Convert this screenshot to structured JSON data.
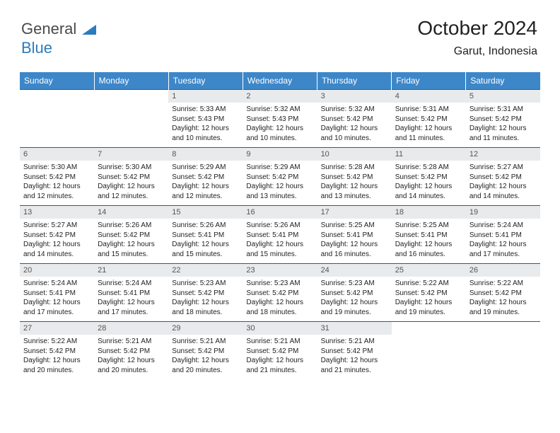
{
  "branding": {
    "word1": "General",
    "word2": "Blue",
    "word1_color": "#4a4a4a",
    "word2_color": "#2b7bbf",
    "triangle_color": "#2b7bbf"
  },
  "header": {
    "title": "October 2024",
    "location": "Garut, Indonesia",
    "title_fontsize": 28,
    "location_fontsize": 16
  },
  "calendar": {
    "header_bg": "#3d87c9",
    "header_fg": "#ffffff",
    "daynum_bg": "#e8eaec",
    "border_color": "#2a5a8a",
    "day_headers": [
      "Sunday",
      "Monday",
      "Tuesday",
      "Wednesday",
      "Thursday",
      "Friday",
      "Saturday"
    ],
    "weeks": [
      [
        null,
        null,
        {
          "n": "1",
          "sr": "5:33 AM",
          "ss": "5:43 PM",
          "dl": "12 hours and 10 minutes."
        },
        {
          "n": "2",
          "sr": "5:32 AM",
          "ss": "5:43 PM",
          "dl": "12 hours and 10 minutes."
        },
        {
          "n": "3",
          "sr": "5:32 AM",
          "ss": "5:42 PM",
          "dl": "12 hours and 10 minutes."
        },
        {
          "n": "4",
          "sr": "5:31 AM",
          "ss": "5:42 PM",
          "dl": "12 hours and 11 minutes."
        },
        {
          "n": "5",
          "sr": "5:31 AM",
          "ss": "5:42 PM",
          "dl": "12 hours and 11 minutes."
        }
      ],
      [
        {
          "n": "6",
          "sr": "5:30 AM",
          "ss": "5:42 PM",
          "dl": "12 hours and 12 minutes."
        },
        {
          "n": "7",
          "sr": "5:30 AM",
          "ss": "5:42 PM",
          "dl": "12 hours and 12 minutes."
        },
        {
          "n": "8",
          "sr": "5:29 AM",
          "ss": "5:42 PM",
          "dl": "12 hours and 12 minutes."
        },
        {
          "n": "9",
          "sr": "5:29 AM",
          "ss": "5:42 PM",
          "dl": "12 hours and 13 minutes."
        },
        {
          "n": "10",
          "sr": "5:28 AM",
          "ss": "5:42 PM",
          "dl": "12 hours and 13 minutes."
        },
        {
          "n": "11",
          "sr": "5:28 AM",
          "ss": "5:42 PM",
          "dl": "12 hours and 14 minutes."
        },
        {
          "n": "12",
          "sr": "5:27 AM",
          "ss": "5:42 PM",
          "dl": "12 hours and 14 minutes."
        }
      ],
      [
        {
          "n": "13",
          "sr": "5:27 AM",
          "ss": "5:42 PM",
          "dl": "12 hours and 14 minutes."
        },
        {
          "n": "14",
          "sr": "5:26 AM",
          "ss": "5:42 PM",
          "dl": "12 hours and 15 minutes."
        },
        {
          "n": "15",
          "sr": "5:26 AM",
          "ss": "5:41 PM",
          "dl": "12 hours and 15 minutes."
        },
        {
          "n": "16",
          "sr": "5:26 AM",
          "ss": "5:41 PM",
          "dl": "12 hours and 15 minutes."
        },
        {
          "n": "17",
          "sr": "5:25 AM",
          "ss": "5:41 PM",
          "dl": "12 hours and 16 minutes."
        },
        {
          "n": "18",
          "sr": "5:25 AM",
          "ss": "5:41 PM",
          "dl": "12 hours and 16 minutes."
        },
        {
          "n": "19",
          "sr": "5:24 AM",
          "ss": "5:41 PM",
          "dl": "12 hours and 17 minutes."
        }
      ],
      [
        {
          "n": "20",
          "sr": "5:24 AM",
          "ss": "5:41 PM",
          "dl": "12 hours and 17 minutes."
        },
        {
          "n": "21",
          "sr": "5:24 AM",
          "ss": "5:41 PM",
          "dl": "12 hours and 17 minutes."
        },
        {
          "n": "22",
          "sr": "5:23 AM",
          "ss": "5:42 PM",
          "dl": "12 hours and 18 minutes."
        },
        {
          "n": "23",
          "sr": "5:23 AM",
          "ss": "5:42 PM",
          "dl": "12 hours and 18 minutes."
        },
        {
          "n": "24",
          "sr": "5:23 AM",
          "ss": "5:42 PM",
          "dl": "12 hours and 19 minutes."
        },
        {
          "n": "25",
          "sr": "5:22 AM",
          "ss": "5:42 PM",
          "dl": "12 hours and 19 minutes."
        },
        {
          "n": "26",
          "sr": "5:22 AM",
          "ss": "5:42 PM",
          "dl": "12 hours and 19 minutes."
        }
      ],
      [
        {
          "n": "27",
          "sr": "5:22 AM",
          "ss": "5:42 PM",
          "dl": "12 hours and 20 minutes."
        },
        {
          "n": "28",
          "sr": "5:21 AM",
          "ss": "5:42 PM",
          "dl": "12 hours and 20 minutes."
        },
        {
          "n": "29",
          "sr": "5:21 AM",
          "ss": "5:42 PM",
          "dl": "12 hours and 20 minutes."
        },
        {
          "n": "30",
          "sr": "5:21 AM",
          "ss": "5:42 PM",
          "dl": "12 hours and 21 minutes."
        },
        {
          "n": "31",
          "sr": "5:21 AM",
          "ss": "5:42 PM",
          "dl": "12 hours and 21 minutes."
        },
        null,
        null
      ]
    ],
    "labels": {
      "sunrise": "Sunrise:",
      "sunset": "Sunset:",
      "daylight": "Daylight:"
    }
  }
}
